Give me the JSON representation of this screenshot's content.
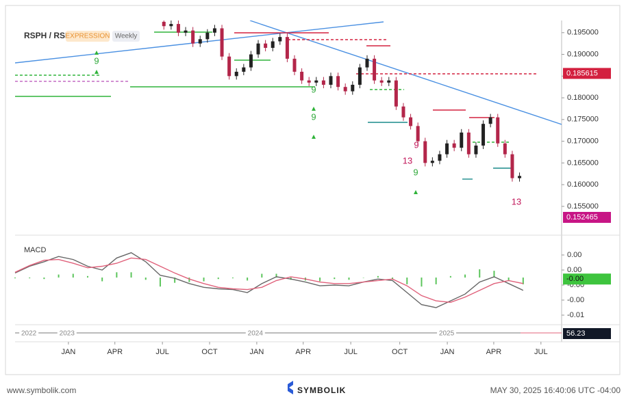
{
  "chart_data": [
    {
      "type": "candlestick",
      "title": "RSPH / RSP",
      "tags": [
        "EXPRESSION",
        "Weekly"
      ],
      "x": [
        41,
        43,
        45,
        47,
        49,
        51,
        53,
        55,
        57,
        59,
        61,
        63,
        65,
        67,
        69,
        71,
        73,
        75,
        77,
        79,
        81,
        83,
        85,
        87,
        89,
        91,
        93,
        95,
        97,
        99,
        101,
        103,
        105,
        107,
        109,
        111,
        113,
        115,
        117,
        119,
        121,
        123,
        125,
        127,
        129,
        131,
        133,
        135,
        137,
        139
      ],
      "open": [
        0.1975,
        0.1965,
        0.197,
        0.195,
        0.1955,
        0.1925,
        0.1935,
        0.195,
        0.196,
        0.1895,
        0.185,
        0.186,
        0.187,
        0.19,
        0.1925,
        0.1915,
        0.193,
        0.194,
        0.189,
        0.186,
        0.184,
        0.1835,
        0.184,
        0.183,
        0.185,
        0.1825,
        0.1815,
        0.183,
        0.187,
        0.189,
        0.184,
        0.1835,
        0.184,
        0.178,
        0.1755,
        0.1735,
        0.17,
        0.165,
        0.1655,
        0.167,
        0.1695,
        0.1685,
        0.172,
        0.167,
        0.169,
        0.174,
        0.1755,
        0.1695,
        0.167,
        0.1615
      ],
      "high": [
        0.1983,
        0.1978,
        0.1978,
        0.1963,
        0.1963,
        0.1943,
        0.1958,
        0.1968,
        0.1968,
        0.1903,
        0.1868,
        0.1878,
        0.1908,
        0.1933,
        0.1933,
        0.1938,
        0.1948,
        0.1948,
        0.1898,
        0.1868,
        0.1848,
        0.1848,
        0.1848,
        0.1858,
        0.1858,
        0.1833,
        0.1838,
        0.1878,
        0.1898,
        0.1898,
        0.1848,
        0.1848,
        0.1848,
        0.1788,
        0.1763,
        0.1743,
        0.1708,
        0.1663,
        0.1678,
        0.1703,
        0.1703,
        0.1728,
        0.1728,
        0.1698,
        0.1748,
        0.1763,
        0.1763,
        0.1703,
        0.1678,
        0.1628
      ],
      "low": [
        0.1957,
        0.1957,
        0.1942,
        0.1942,
        0.1917,
        0.1917,
        0.1927,
        0.1942,
        0.1887,
        0.1842,
        0.1842,
        0.1852,
        0.1862,
        0.1892,
        0.1907,
        0.1907,
        0.1922,
        0.1882,
        0.1852,
        0.1832,
        0.1827,
        0.1827,
        0.1822,
        0.1822,
        0.1817,
        0.1807,
        0.1807,
        0.1822,
        0.1862,
        0.1832,
        0.1827,
        0.1827,
        0.1772,
        0.1747,
        0.1727,
        0.1692,
        0.1642,
        0.1642,
        0.1647,
        0.1662,
        0.1677,
        0.1677,
        0.1662,
        0.1662,
        0.1682,
        0.1732,
        0.1687,
        0.1662,
        0.1607,
        0.1607
      ],
      "close": [
        0.1965,
        0.197,
        0.195,
        0.1955,
        0.1925,
        0.1935,
        0.195,
        0.196,
        0.1895,
        0.185,
        0.186,
        0.187,
        0.19,
        0.1925,
        0.1915,
        0.193,
        0.194,
        0.189,
        0.186,
        0.184,
        0.1835,
        0.184,
        0.183,
        0.185,
        0.1825,
        0.1815,
        0.183,
        0.187,
        0.189,
        0.184,
        0.1835,
        0.184,
        0.178,
        0.1755,
        0.1735,
        0.17,
        0.165,
        0.1655,
        0.167,
        0.1695,
        0.1685,
        0.172,
        0.167,
        0.169,
        0.174,
        0.1755,
        0.1695,
        0.167,
        0.1615,
        0.162
      ],
      "up_color": "#222222",
      "down_color": "#b3264a",
      "xlim": [
        0,
        150.6
      ],
      "ylim": [
        0.149,
        0.1978
      ],
      "xticks": [
        {
          "value": 14.7,
          "label": "JAN"
        },
        {
          "value": 27.5,
          "label": "APR"
        },
        {
          "value": 40.6,
          "label": "JUL"
        },
        {
          "value": 53.6,
          "label": "OCT"
        },
        {
          "value": 66.6,
          "label": "JAN"
        },
        {
          "value": 79.4,
          "label": "APR"
        },
        {
          "value": 92.5,
          "label": "JUL"
        },
        {
          "value": 106,
          "label": "OCT"
        },
        {
          "value": 119.1,
          "label": "JAN"
        },
        {
          "value": 131.9,
          "label": "APR"
        },
        {
          "value": 144.9,
          "label": "JUL"
        }
      ],
      "yticks": [
        {
          "value": 0.195,
          "label": "0.195000"
        },
        {
          "value": 0.19,
          "label": "0.190000"
        },
        {
          "value": 0.185,
          "label": "0.185000"
        },
        {
          "value": 0.18,
          "label": "0.180000"
        },
        {
          "value": 0.175,
          "label": "0.175000"
        },
        {
          "value": 0.17,
          "label": "0.170000"
        },
        {
          "value": 0.165,
          "label": "0.165000"
        },
        {
          "value": 0.16,
          "label": "0.160000"
        },
        {
          "value": 0.155,
          "label": "0.155000"
        }
      ],
      "price_markers": [
        {
          "value": 0.185615,
          "color": "#d3203f"
        },
        {
          "value": 0.152465,
          "color": "#c71585"
        }
      ],
      "annotations": [
        {
          "text": "9",
          "color": "#2fa83a"
        },
        {
          "text": "9",
          "color": "#2fa83a"
        },
        {
          "text": "9",
          "color": "#2fa83a"
        },
        {
          "text": "13",
          "color": "#c2185b"
        },
        {
          "text": "9",
          "color": "#2fa83a"
        },
        {
          "text": "13",
          "color": "#c2185b"
        },
        {
          "text": "9",
          "color": "#c2185b"
        }
      ]
    },
    {
      "type": "macd",
      "title": "MACD",
      "x": [
        0,
        4,
        8,
        12,
        16,
        20,
        24,
        28,
        32,
        36,
        40,
        44,
        48,
        52,
        56,
        60,
        64,
        68,
        72,
        76,
        80,
        84,
        88,
        92,
        96,
        100,
        104,
        108,
        112,
        116,
        120,
        124,
        128,
        132,
        136,
        140
      ],
      "macd": [
        0.0006,
        0.0015,
        0.0021,
        0.0028,
        0.0024,
        0.0015,
        0.001,
        0.0026,
        0.0033,
        0.0021,
        0.0003,
        -0.0001,
        -0.0008,
        -0.0013,
        -0.0015,
        -0.0016,
        -0.002,
        -0.0008,
        0.0001,
        -0.0002,
        -0.0006,
        -0.0011,
        -0.001,
        -0.0011,
        -0.0006,
        -0.0002,
        -0.0004,
        -0.002,
        -0.0036,
        -0.004,
        -0.0031,
        -0.0022,
        -0.0006,
        0.0001,
        -0.0008,
        -0.0017
      ],
      "signal": [
        0.0007,
        0.0016,
        0.0023,
        0.0024,
        0.0019,
        0.0013,
        0.0015,
        0.0019,
        0.0026,
        0.0024,
        0.0015,
        0.0006,
        -0.0002,
        -0.0008,
        -0.0013,
        -0.0015,
        -0.0016,
        -0.0013,
        -0.0004,
        0.0001,
        -0.0002,
        -0.0006,
        -0.0008,
        -0.0008,
        -0.0006,
        -0.0004,
        -0.0002,
        -0.0011,
        -0.0024,
        -0.0031,
        -0.0033,
        -0.0026,
        -0.0017,
        -0.0008,
        -0.0004,
        -0.0008
      ],
      "histogram": [
        -0.0001,
        -0.0001,
        -0.0002,
        0.0004,
        0.0005,
        0.0002,
        -0.0005,
        0.0007,
        0.0007,
        -0.0003,
        -0.0012,
        -0.0007,
        -0.0006,
        -0.0005,
        -0.0002,
        -0.0001,
        -0.0004,
        0.0005,
        0.0005,
        -0.0003,
        -0.0004,
        -0.0005,
        -0.0002,
        -0.0003,
        0,
        0.0002,
        -0.0002,
        -0.0009,
        -0.0012,
        -0.0009,
        0.0002,
        0.0004,
        0.0011,
        0.0009,
        -0.0004,
        -0.0009
      ],
      "macd_color": "#666666",
      "signal_color": "#e0607a",
      "histogram_color": "#5cc55c",
      "xlim": [
        0,
        150.6
      ],
      "ylim": [
        -0.006,
        0.00491
      ],
      "yticks": [
        {
          "value": 0.003,
          "label": "0.00"
        },
        {
          "value": 0.001,
          "label": "0.00"
        },
        {
          "value": -0.001,
          "label": "-0.00"
        },
        {
          "value": -0.003,
          "label": "-0.00"
        },
        {
          "value": -0.005,
          "label": "-0.01"
        }
      ],
      "marker": {
        "value": -0.0002,
        "label": "-0.00",
        "color": "#3ec43e"
      }
    },
    {
      "type": "timeline",
      "xlim": [
        0,
        150.6
      ],
      "xticks": [
        {
          "value": 3.8,
          "label": "2022"
        },
        {
          "value": 14.3,
          "label": "2023"
        },
        {
          "value": 66.2,
          "label": "2024"
        },
        {
          "value": 118.9,
          "label": "2025"
        }
      ],
      "marker": {
        "value": 56.23,
        "color": "#111827"
      }
    }
  ],
  "footer": {
    "site": "www.symbolik.com",
    "brand": "SYMBOLIK",
    "timestamp": "MAY 30, 2025 16:40:06 UTC -04:00"
  }
}
